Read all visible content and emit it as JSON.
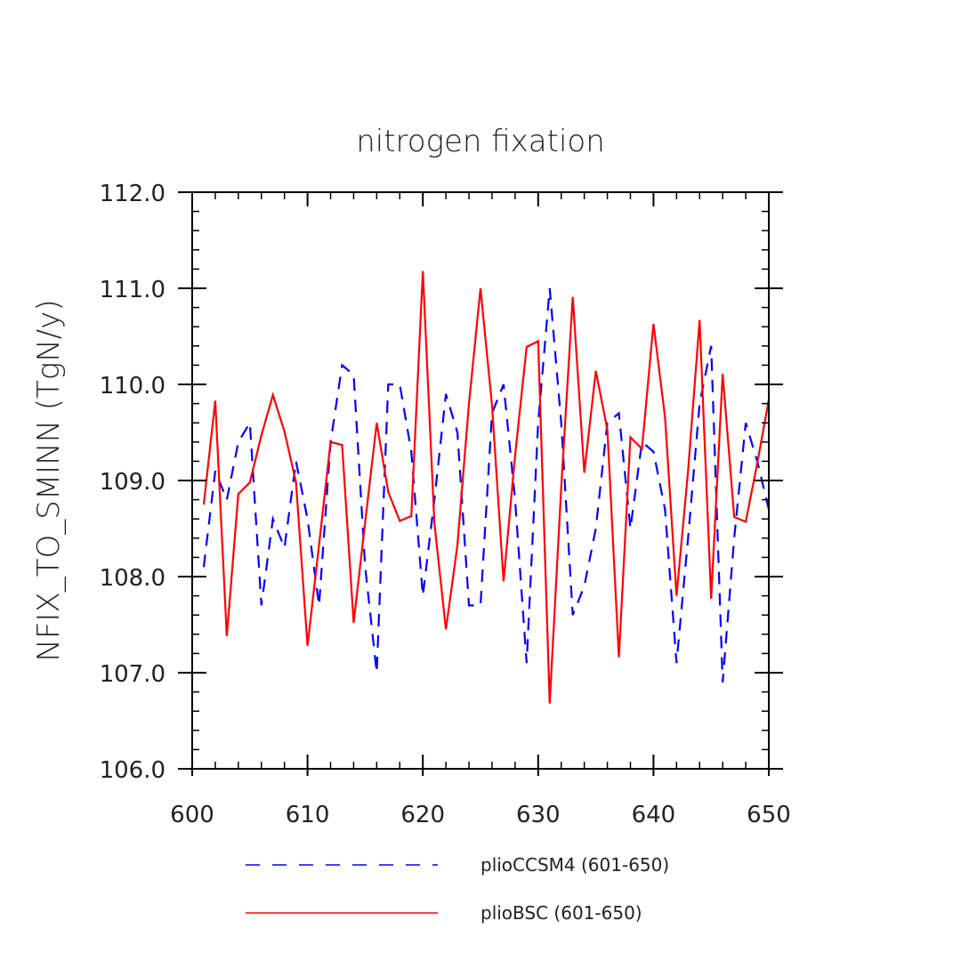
{
  "chart_data": {
    "type": "line",
    "title": "nitrogen fixation",
    "ylabel": "NFIX_TO_SMINN   (TgN/y)",
    "xlabel": "",
    "xlim": [
      600,
      650
    ],
    "ylim": [
      106.0,
      112.0
    ],
    "x_ticks": [
      600,
      610,
      620,
      630,
      640,
      650
    ],
    "x_tick_labels": [
      "600",
      "610",
      "620",
      "630",
      "640",
      "650"
    ],
    "y_ticks": [
      106.0,
      107.0,
      108.0,
      109.0,
      110.0,
      111.0,
      112.0
    ],
    "y_tick_labels": [
      "106.0",
      "107.0",
      "108.0",
      "109.0",
      "110.0",
      "111.0",
      "112.0"
    ],
    "legend_position": "bottom",
    "x": [
      601,
      602,
      603,
      604,
      605,
      606,
      607,
      608,
      609,
      610,
      611,
      612,
      613,
      614,
      615,
      616,
      617,
      618,
      619,
      620,
      621,
      622,
      623,
      624,
      625,
      626,
      627,
      628,
      629,
      630,
      631,
      632,
      633,
      634,
      635,
      636,
      637,
      638,
      639,
      640,
      641,
      642,
      643,
      644,
      645,
      646,
      647,
      648,
      649,
      650
    ],
    "series": [
      {
        "name": "plioCCSM4 (601-650)",
        "color": "#0000ff",
        "dash": "dashed",
        "values": [
          108.1,
          109.1,
          108.8,
          109.4,
          109.6,
          107.7,
          108.6,
          108.3,
          109.2,
          108.6,
          107.7,
          109.4,
          110.2,
          110.1,
          108.1,
          107.0,
          110.0,
          110.0,
          109.3,
          107.8,
          108.8,
          109.9,
          109.5,
          107.7,
          107.7,
          109.7,
          110.0,
          108.8,
          107.1,
          109.6,
          111.0,
          109.6,
          107.6,
          107.9,
          108.5,
          109.6,
          109.7,
          108.5,
          109.4,
          109.3,
          108.7,
          107.1,
          108.4,
          109.8,
          110.4,
          106.9,
          108.4,
          109.6,
          109.2,
          108.7
        ]
      },
      {
        "name": "plioBSC (601-650)",
        "color": "#ff0000",
        "dash": "solid",
        "values": [
          108.75,
          109.83,
          107.38,
          108.86,
          108.98,
          109.47,
          109.89,
          109.51,
          108.98,
          107.28,
          108.33,
          109.4,
          109.37,
          107.52,
          108.57,
          109.6,
          108.88,
          108.58,
          108.63,
          111.18,
          108.56,
          107.45,
          108.33,
          109.8,
          111.0,
          109.78,
          107.95,
          109.26,
          110.39,
          110.45,
          106.68,
          108.93,
          110.91,
          109.08,
          110.14,
          109.53,
          107.16,
          109.45,
          109.33,
          110.63,
          109.66,
          107.8,
          109.1,
          110.67,
          107.77,
          110.11,
          108.62,
          108.57,
          109.18,
          109.84
        ]
      }
    ]
  }
}
